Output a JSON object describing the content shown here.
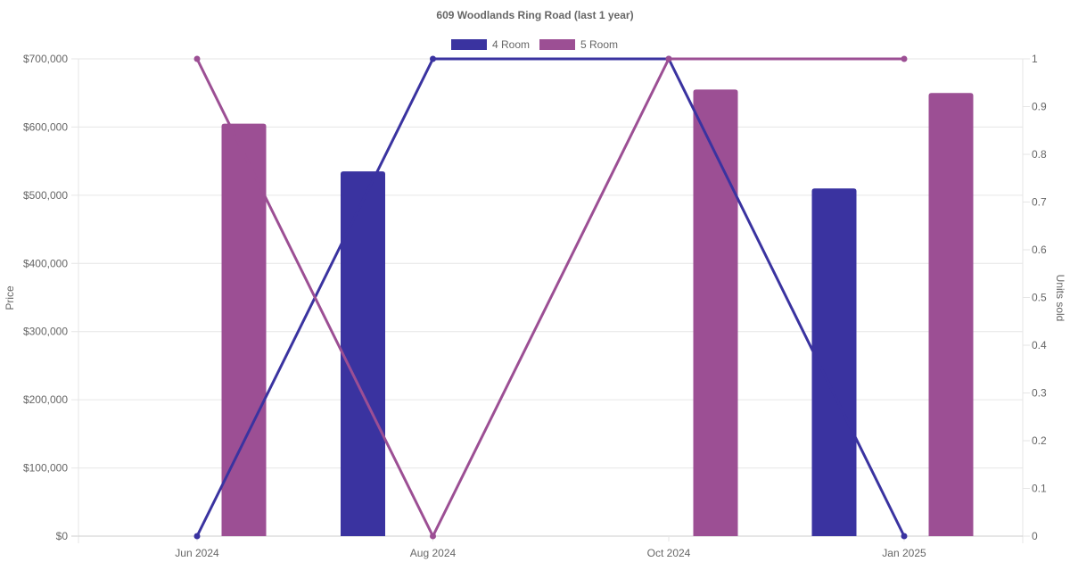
{
  "chart_data": {
    "type": "bar",
    "title": "609 Woodlands Ring Road (last 1 year)",
    "categories": [
      "Jun 2024",
      "Aug 2024",
      "Oct 2024",
      "Jan 2025"
    ],
    "y_left": {
      "label": "Price",
      "range": [
        0,
        700000
      ],
      "ticks": [
        0,
        100000,
        200000,
        300000,
        400000,
        500000,
        600000,
        700000
      ],
      "tick_labels": [
        "$0",
        "$100,000",
        "$200,000",
        "$300,000",
        "$400,000",
        "$500,000",
        "$600,000",
        "$700,000"
      ]
    },
    "y_right": {
      "label": "Units sold",
      "range": [
        0,
        1
      ],
      "ticks": [
        0,
        0.1,
        0.2,
        0.3,
        0.4,
        0.5,
        0.6,
        0.7,
        0.8,
        0.9,
        1
      ],
      "tick_labels": [
        "0",
        "0.1",
        "0.2",
        "0.3",
        "0.4",
        "0.5",
        "0.6",
        "0.7",
        "0.8",
        "0.9",
        "1"
      ]
    },
    "series": [
      {
        "name": "4 Room",
        "color": "#3a33a0",
        "price": [
          null,
          535000,
          null,
          510000
        ],
        "units": [
          0,
          1,
          1,
          0
        ]
      },
      {
        "name": "5 Room",
        "color": "#9c4f94",
        "price": [
          605000,
          null,
          655000,
          650000
        ],
        "units": [
          1,
          0,
          1,
          1
        ]
      }
    ],
    "legend_position": "top-center",
    "grid": true
  }
}
